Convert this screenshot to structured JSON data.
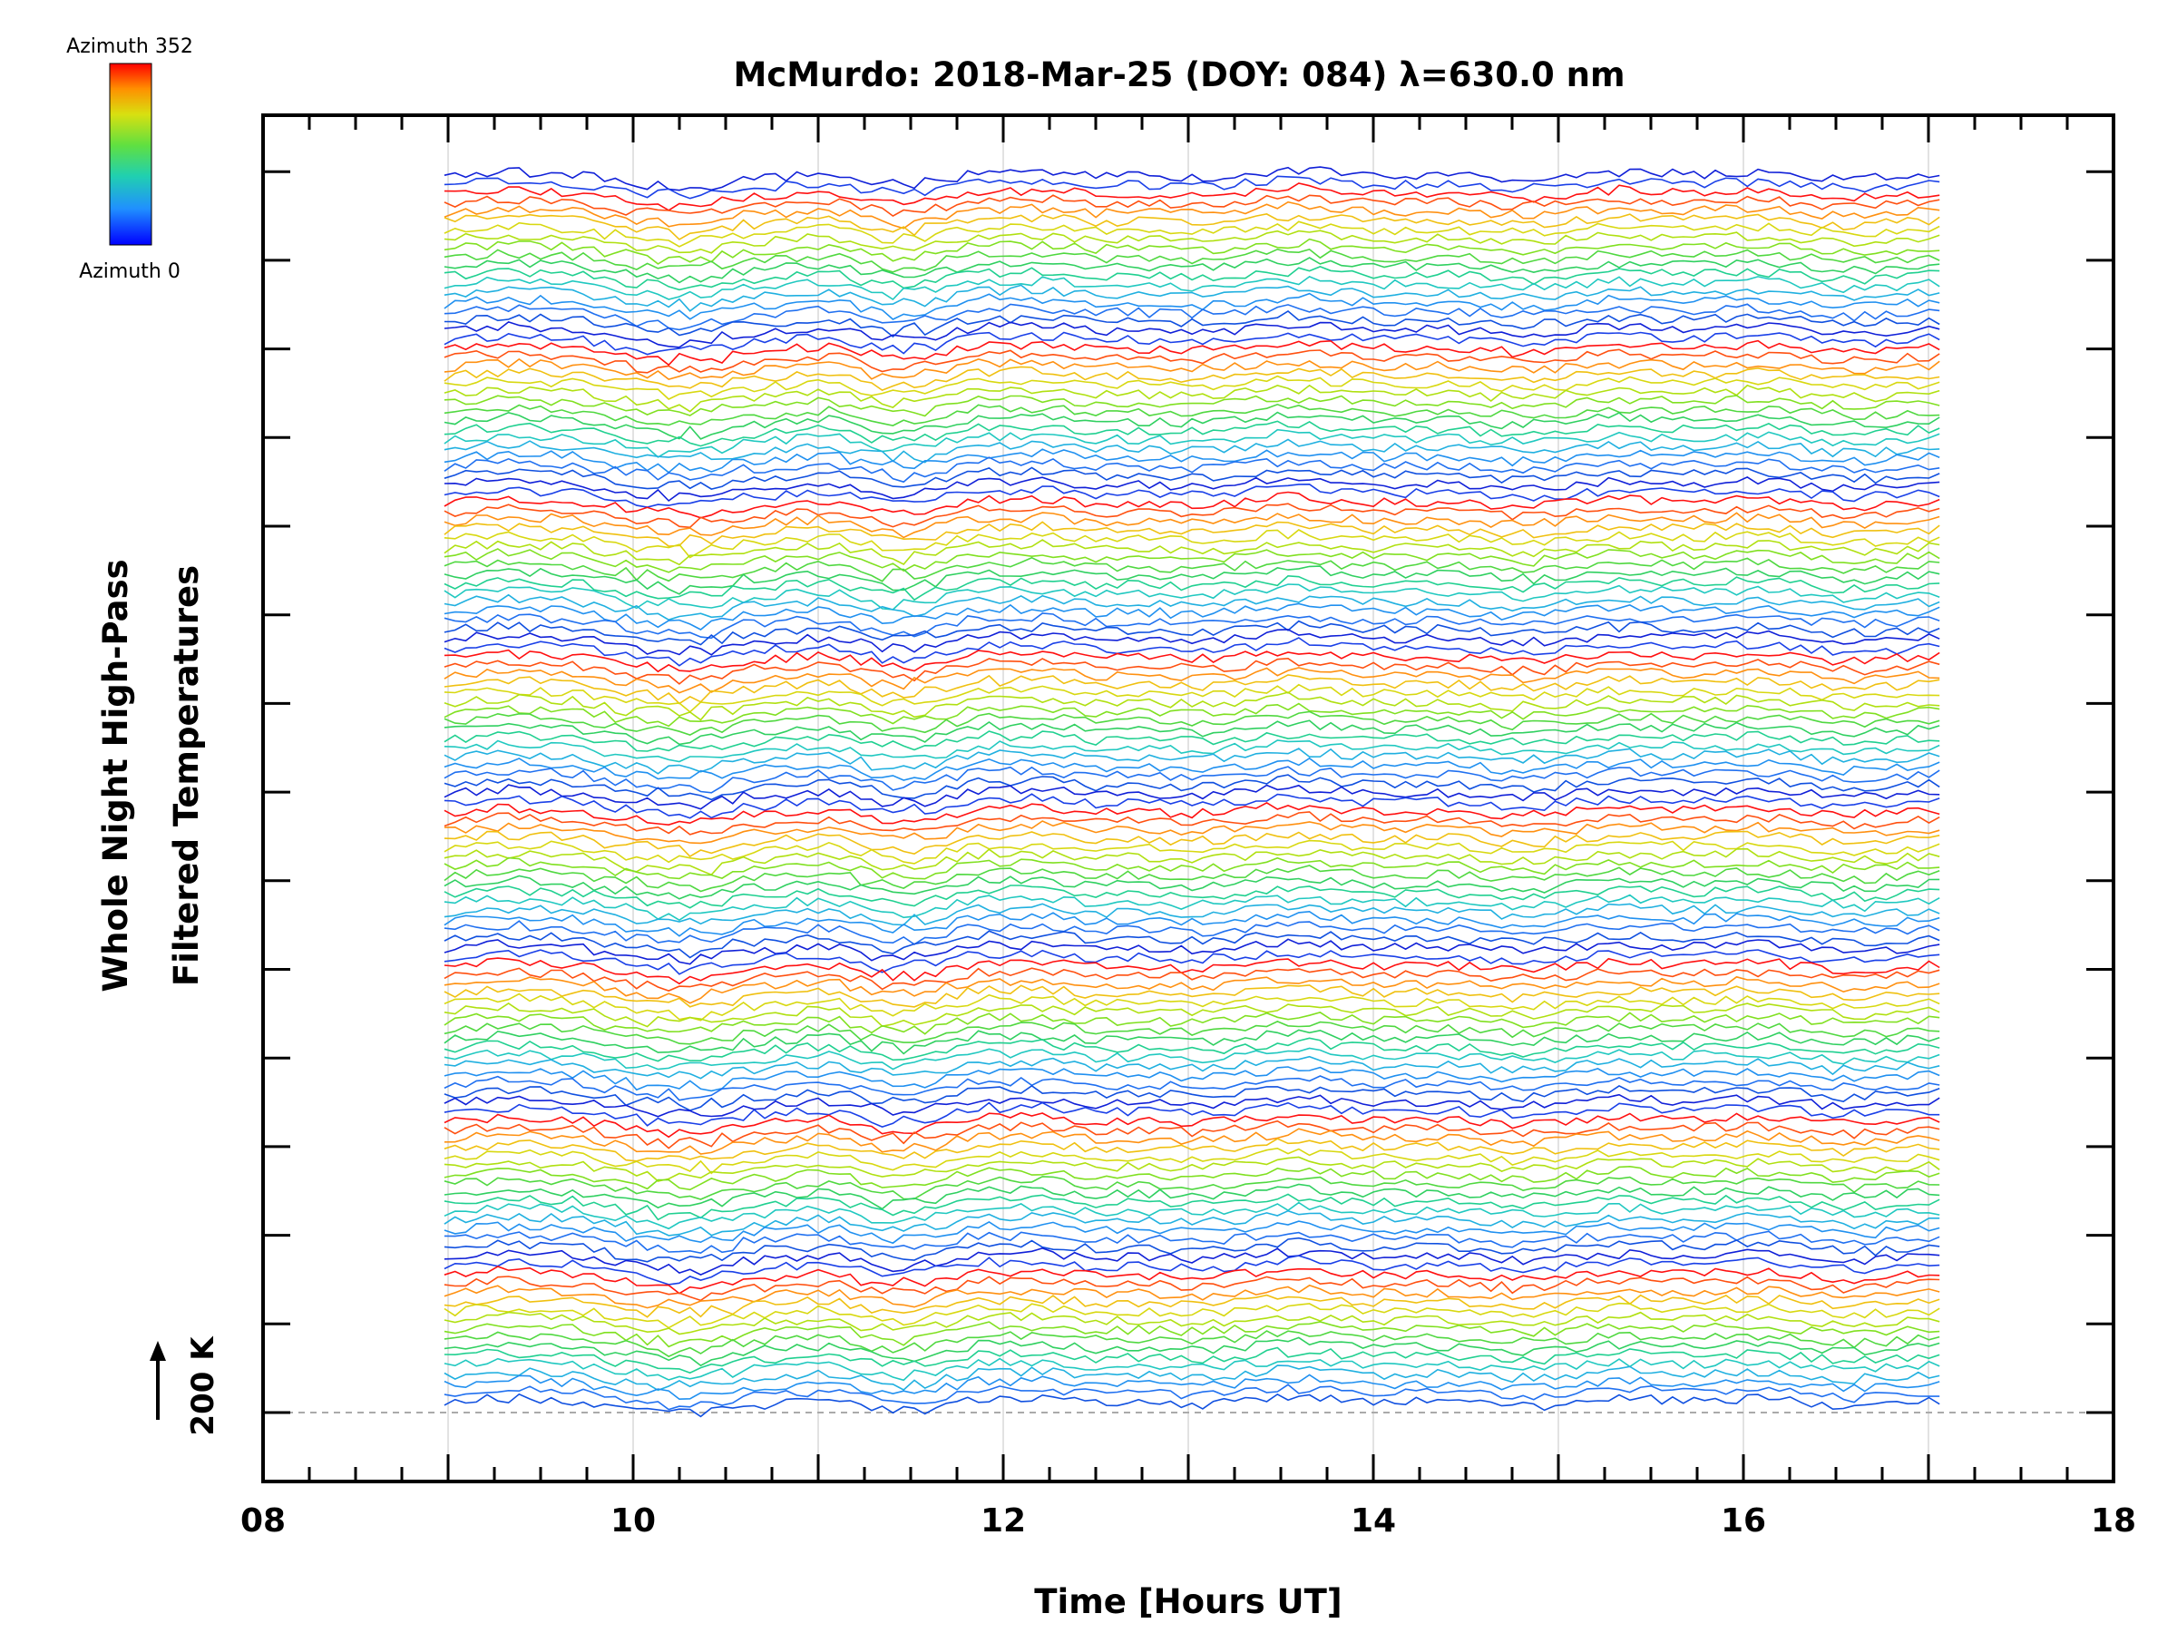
{
  "chart_data": {
    "type": "line",
    "title": "McMurdo: 2018-Mar-25 (DOY: 084) λ=630.0 nm",
    "xlabel": "Time [Hours UT]",
    "ylabel_line1": "Whole Night High-Pass",
    "ylabel_line2": "Filtered Temperatures",
    "xlim": [
      8,
      18
    ],
    "x_tick_labels": [
      "08",
      "10",
      "12",
      "14",
      "16",
      "18"
    ],
    "x_tick_values": [
      8,
      10,
      12,
      14,
      16,
      18
    ],
    "x_minor_step": 0.25,
    "y_stack_offset_steps": 14,
    "y_scale_bar": "200 K",
    "legend": {
      "top_label": "Azimuth 352",
      "bottom_label": "Azimuth 0",
      "colors": [
        "#ff0000",
        "#ff8000",
        "#ffe000",
        "#a0e000",
        "#30d040",
        "#20c8c8",
        "#2080ff",
        "#0000ff"
      ]
    },
    "time_range": [
      8.98,
      17.06
    ],
    "n_traces": 136,
    "azimuth_cycle": 17,
    "trace_color_cycle": [
      "#1020d8",
      "#1a40e8",
      "#ff1010",
      "#ff5010",
      "#ff9010",
      "#f0c010",
      "#d8d810",
      "#b0e010",
      "#80e020",
      "#50d840",
      "#30d060",
      "#20d090",
      "#20c8c0",
      "#20b0e0",
      "#2090f0",
      "#2070f0",
      "#1050e0"
    ],
    "series_note": "Stacked high-pass filtered temperature traces, each offset vertically, coloured by azimuth index."
  }
}
